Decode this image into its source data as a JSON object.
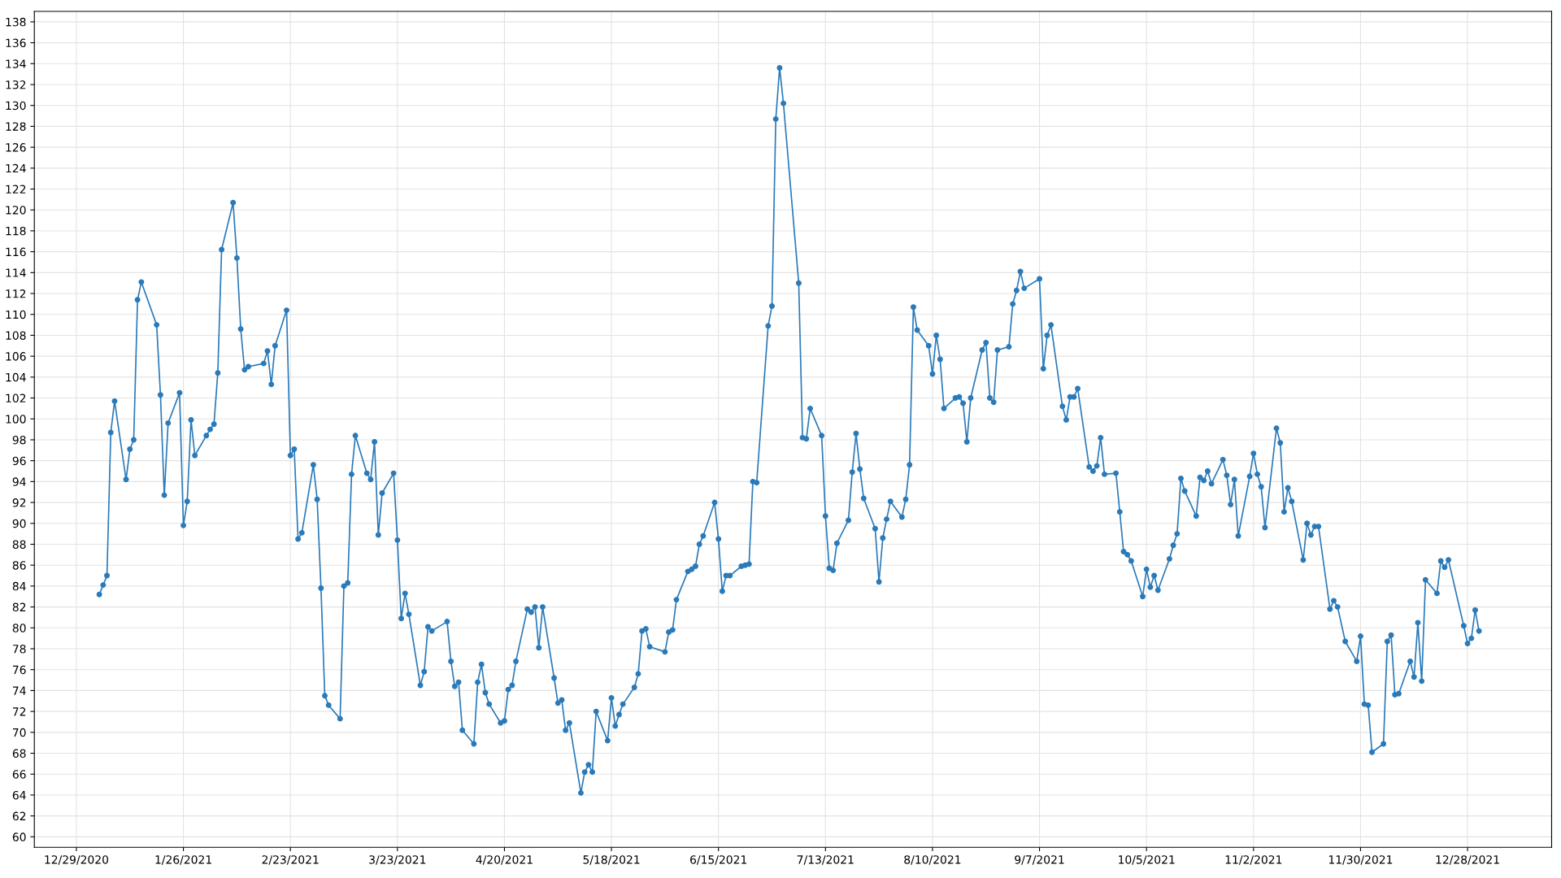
{
  "chart_data": {
    "type": "line",
    "marker": "circle",
    "grid": true,
    "line_style": "solid",
    "xlim": [
      "2020-12-18",
      "2022-01-19"
    ],
    "xticks": [
      {
        "value": "2020-12-29",
        "label": "12/29/2020"
      },
      {
        "value": "2021-01-26",
        "label": "1/26/2021"
      },
      {
        "value": "2021-02-23",
        "label": "2/23/2021"
      },
      {
        "value": "2021-03-23",
        "label": "3/23/2021"
      },
      {
        "value": "2021-04-20",
        "label": "4/20/2021"
      },
      {
        "value": "2021-05-18",
        "label": "5/18/2021"
      },
      {
        "value": "2021-06-15",
        "label": "6/15/2021"
      },
      {
        "value": "2021-07-13",
        "label": "7/13/2021"
      },
      {
        "value": "2021-08-10",
        "label": "8/10/2021"
      },
      {
        "value": "2021-09-07",
        "label": "9/7/2021"
      },
      {
        "value": "2021-10-05",
        "label": "10/5/2021"
      },
      {
        "value": "2021-11-02",
        "label": "11/2/2021"
      },
      {
        "value": "2021-11-30",
        "label": "11/30/2021"
      },
      {
        "value": "2021-12-28",
        "label": "12/28/2021"
      }
    ],
    "ylim": [
      59,
      139
    ],
    "yticks": [
      60,
      62,
      64,
      66,
      68,
      70,
      72,
      74,
      76,
      78,
      80,
      82,
      84,
      86,
      88,
      90,
      92,
      94,
      96,
      98,
      100,
      102,
      104,
      106,
      108,
      110,
      112,
      114,
      116,
      118,
      120,
      122,
      124,
      126,
      128,
      130,
      132,
      134,
      136,
      138
    ],
    "x": [
      "2021-01-04",
      "2021-01-05",
      "2021-01-06",
      "2021-01-07",
      "2021-01-08",
      "2021-01-11",
      "2021-01-12",
      "2021-01-13",
      "2021-01-14",
      "2021-01-15",
      "2021-01-19",
      "2021-01-20",
      "2021-01-21",
      "2021-01-22",
      "2021-01-25",
      "2021-01-26",
      "2021-01-27",
      "2021-01-28",
      "2021-01-29",
      "2021-02-01",
      "2021-02-02",
      "2021-02-03",
      "2021-02-04",
      "2021-02-05",
      "2021-02-08",
      "2021-02-09",
      "2021-02-10",
      "2021-02-11",
      "2021-02-12",
      "2021-02-16",
      "2021-02-17",
      "2021-02-18",
      "2021-02-19",
      "2021-02-22",
      "2021-02-23",
      "2021-02-24",
      "2021-02-25",
      "2021-02-26",
      "2021-03-01",
      "2021-03-02",
      "2021-03-03",
      "2021-03-04",
      "2021-03-05",
      "2021-03-08",
      "2021-03-09",
      "2021-03-10",
      "2021-03-11",
      "2021-03-12",
      "2021-03-15",
      "2021-03-16",
      "2021-03-17",
      "2021-03-18",
      "2021-03-19",
      "2021-03-22",
      "2021-03-23",
      "2021-03-24",
      "2021-03-25",
      "2021-03-26",
      "2021-03-29",
      "2021-03-30",
      "2021-03-31",
      "2021-04-01",
      "2021-04-05",
      "2021-04-06",
      "2021-04-07",
      "2021-04-08",
      "2021-04-09",
      "2021-04-12",
      "2021-04-13",
      "2021-04-14",
      "2021-04-15",
      "2021-04-16",
      "2021-04-19",
      "2021-04-20",
      "2021-04-21",
      "2021-04-22",
      "2021-04-23",
      "2021-04-26",
      "2021-04-27",
      "2021-04-28",
      "2021-04-29",
      "2021-04-30",
      "2021-05-03",
      "2021-05-04",
      "2021-05-05",
      "2021-05-06",
      "2021-05-07",
      "2021-05-10",
      "2021-05-11",
      "2021-05-12",
      "2021-05-13",
      "2021-05-14",
      "2021-05-17",
      "2021-05-18",
      "2021-05-19",
      "2021-05-20",
      "2021-05-21",
      "2021-05-24",
      "2021-05-25",
      "2021-05-26",
      "2021-05-27",
      "2021-05-28",
      "2021-06-01",
      "2021-06-02",
      "2021-06-03",
      "2021-06-04",
      "2021-06-07",
      "2021-06-08",
      "2021-06-09",
      "2021-06-10",
      "2021-06-11",
      "2021-06-14",
      "2021-06-15",
      "2021-06-16",
      "2021-06-17",
      "2021-06-18",
      "2021-06-21",
      "2021-06-22",
      "2021-06-23",
      "2021-06-24",
      "2021-06-25",
      "2021-06-28",
      "2021-06-29",
      "2021-06-30",
      "2021-07-01",
      "2021-07-02",
      "2021-07-06",
      "2021-07-07",
      "2021-07-08",
      "2021-07-09",
      "2021-07-12",
      "2021-07-13",
      "2021-07-14",
      "2021-07-15",
      "2021-07-16",
      "2021-07-19",
      "2021-07-20",
      "2021-07-21",
      "2021-07-22",
      "2021-07-23",
      "2021-07-26",
      "2021-07-27",
      "2021-07-28",
      "2021-07-29",
      "2021-07-30",
      "2021-08-02",
      "2021-08-03",
      "2021-08-04",
      "2021-08-05",
      "2021-08-06",
      "2021-08-09",
      "2021-08-10",
      "2021-08-11",
      "2021-08-12",
      "2021-08-13",
      "2021-08-16",
      "2021-08-17",
      "2021-08-18",
      "2021-08-19",
      "2021-08-20",
      "2021-08-23",
      "2021-08-24",
      "2021-08-25",
      "2021-08-26",
      "2021-08-27",
      "2021-08-30",
      "2021-08-31",
      "2021-09-01",
      "2021-09-02",
      "2021-09-03",
      "2021-09-07",
      "2021-09-08",
      "2021-09-09",
      "2021-09-10",
      "2021-09-13",
      "2021-09-14",
      "2021-09-15",
      "2021-09-16",
      "2021-09-17",
      "2021-09-20",
      "2021-09-21",
      "2021-09-22",
      "2021-09-23",
      "2021-09-24",
      "2021-09-27",
      "2021-09-28",
      "2021-09-29",
      "2021-09-30",
      "2021-10-01",
      "2021-10-04",
      "2021-10-05",
      "2021-10-06",
      "2021-10-07",
      "2021-10-08",
      "2021-10-11",
      "2021-10-12",
      "2021-10-13",
      "2021-10-14",
      "2021-10-15",
      "2021-10-18",
      "2021-10-19",
      "2021-10-20",
      "2021-10-21",
      "2021-10-22",
      "2021-10-25",
      "2021-10-26",
      "2021-10-27",
      "2021-10-28",
      "2021-10-29",
      "2021-11-01",
      "2021-11-02",
      "2021-11-03",
      "2021-11-04",
      "2021-11-05",
      "2021-11-08",
      "2021-11-09",
      "2021-11-10",
      "2021-11-11",
      "2021-11-12",
      "2021-11-15",
      "2021-11-16",
      "2021-11-17",
      "2021-11-18",
      "2021-11-19",
      "2021-11-22",
      "2021-11-23",
      "2021-11-24",
      "2021-11-26",
      "2021-11-29",
      "2021-11-30",
      "2021-12-01",
      "2021-12-02",
      "2021-12-03",
      "2021-12-06",
      "2021-12-07",
      "2021-12-08",
      "2021-12-09",
      "2021-12-10",
      "2021-12-13",
      "2021-12-14",
      "2021-12-15",
      "2021-12-16",
      "2021-12-17",
      "2021-12-20",
      "2021-12-21",
      "2021-12-22",
      "2021-12-23",
      "2021-12-27",
      "2021-12-28",
      "2021-12-29",
      "2021-12-30",
      "2021-12-31"
    ],
    "series": [
      {
        "color": "#2a7ab9",
        "values": [
          83.2,
          84.1,
          85.0,
          98.7,
          101.7,
          94.2,
          97.1,
          98.0,
          111.4,
          113.1,
          109.0,
          102.3,
          92.7,
          99.6,
          102.5,
          89.8,
          92.1,
          99.9,
          96.5,
          98.4,
          99.0,
          99.5,
          104.4,
          116.2,
          120.7,
          115.4,
          108.6,
          104.7,
          105.0,
          105.3,
          106.5,
          103.3,
          107.0,
          110.4,
          96.5,
          97.1,
          88.5,
          89.1,
          95.6,
          92.3,
          83.8,
          73.5,
          72.6,
          71.3,
          84.0,
          84.3,
          94.7,
          98.4,
          94.8,
          94.2,
          97.8,
          88.9,
          92.9,
          94.8,
          88.4,
          80.9,
          83.3,
          81.3,
          74.5,
          75.8,
          80.1,
          79.7,
          80.6,
          76.8,
          74.4,
          74.8,
          70.2,
          68.9,
          74.8,
          76.5,
          73.8,
          72.7,
          70.9,
          71.1,
          74.1,
          74.5,
          76.8,
          81.8,
          81.5,
          82.0,
          78.1,
          82.0,
          75.2,
          72.8,
          73.1,
          70.2,
          70.9,
          64.2,
          66.2,
          66.9,
          66.2,
          72.0,
          69.2,
          73.3,
          70.6,
          71.7,
          72.7,
          74.3,
          75.6,
          79.7,
          79.9,
          78.2,
          77.7,
          79.6,
          79.8,
          82.7,
          85.4,
          85.6,
          85.9,
          88.0,
          88.8,
          92.0,
          88.5,
          83.5,
          85.0,
          85.0,
          85.9,
          86.0,
          86.1,
          94.0,
          93.9,
          108.9,
          110.8,
          128.7,
          133.6,
          130.2,
          113.0,
          98.2,
          98.1,
          101.0,
          98.4,
          90.7,
          85.7,
          85.5,
          88.1,
          90.3,
          94.9,
          98.6,
          95.2,
          92.4,
          89.5,
          84.4,
          88.6,
          90.4,
          92.1,
          90.6,
          92.3,
          95.6,
          110.7,
          108.5,
          107.0,
          104.3,
          108.0,
          105.7,
          101.0,
          102.0,
          102.1,
          101.5,
          97.8,
          102.0,
          106.6,
          107.3,
          102.0,
          101.6,
          106.6,
          106.9,
          111.0,
          112.3,
          114.1,
          112.5,
          113.4,
          104.8,
          108.0,
          109.0,
          101.2,
          99.9,
          102.1,
          102.1,
          102.9,
          95.4,
          95.0,
          95.5,
          98.2,
          94.7,
          94.8,
          91.1,
          87.3,
          87.0,
          86.4,
          83.0,
          85.6,
          83.9,
          85.0,
          83.6,
          86.6,
          87.9,
          89.0,
          94.3,
          93.1,
          90.7,
          94.4,
          94.1,
          95.0,
          93.8,
          96.1,
          94.6,
          91.8,
          94.2,
          88.8,
          94.5,
          96.7,
          94.7,
          93.5,
          89.6,
          99.1,
          97.7,
          91.1,
          93.4,
          92.1,
          86.5,
          90.0,
          88.9,
          89.7,
          89.7,
          81.8,
          82.6,
          82.0,
          78.7,
          76.8,
          79.2,
          72.7,
          72.6,
          68.1,
          68.9,
          78.7,
          79.3,
          73.6,
          73.7,
          76.8,
          75.3,
          80.5,
          74.9,
          84.6,
          83.3,
          86.4,
          85.8,
          86.5,
          80.2,
          78.5,
          79.0,
          81.7,
          79.7
        ]
      }
    ]
  }
}
